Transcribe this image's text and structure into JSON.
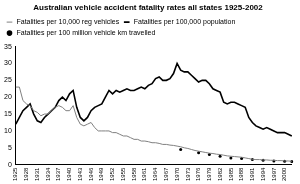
{
  "chart_data": {
    "type": "line",
    "title": "Australian vehicle accident fatality rates all states 1925-2002",
    "categories": [
      "1925",
      null,
      null,
      "1928",
      null,
      null,
      "1931",
      null,
      null,
      "1934",
      null,
      null,
      "1937",
      null,
      null,
      "1940",
      null,
      null,
      "1943",
      null,
      null,
      "1946",
      null,
      null,
      "1949",
      null,
      null,
      "1952",
      null,
      null,
      "1955",
      null,
      null,
      "1958",
      null,
      null,
      "1961",
      null,
      null,
      "1964",
      null,
      null,
      "1967",
      null,
      null,
      "1970",
      null,
      null,
      "1973",
      null,
      null,
      "1976",
      null,
      null,
      "1979",
      null,
      null,
      "1982",
      null,
      null,
      "1985",
      null,
      null,
      "1988",
      null,
      null,
      "1991",
      null,
      null,
      "1994",
      null,
      null,
      "1997",
      null,
      null,
      "2000",
      null,
      null
    ],
    "series": [
      {
        "name": "Fatalities per 10,000 reg vehicles",
        "color": "#808080",
        "marker": "none",
        "line_style": "solid",
        "values": [
          23,
          23,
          19,
          18,
          17.5,
          16,
          15.5,
          14.5,
          15,
          15,
          16,
          17,
          17.5,
          17,
          16,
          16,
          17.5,
          14,
          12,
          11.5,
          12,
          12.5,
          11,
          10,
          10,
          10,
          10,
          9.5,
          9.5,
          9,
          8.5,
          8.5,
          8,
          7.5,
          7.5,
          7,
          7,
          6.8,
          6.5,
          6.5,
          6.3,
          6,
          6,
          5.8,
          5.7,
          5.5,
          5.3,
          5,
          4.8,
          4.5,
          4.2,
          4,
          3.8,
          3.6,
          3.4,
          3.3,
          3.1,
          3,
          2.8,
          2.6,
          2.5,
          2.4,
          2.3,
          2.2,
          2,
          1.8,
          1.6,
          1.5,
          1.5,
          1.4,
          1.4,
          1.3,
          1.3,
          1.2,
          1.2,
          1.1,
          1.1,
          1.0
        ]
      },
      {
        "name": "Fatalities per 100,000 population",
        "color": "#000000",
        "marker": "none",
        "line_style": "solid",
        "values": [
          12,
          14,
          16,
          17,
          18,
          15,
          13,
          12.5,
          14,
          15,
          16,
          17,
          19,
          20,
          19,
          21,
          22,
          17,
          14,
          13,
          14,
          16,
          17,
          17.5,
          18,
          20,
          22,
          21,
          22,
          21.5,
          22,
          22.5,
          22,
          22,
          22.5,
          23,
          22.5,
          23.5,
          24,
          25.5,
          26,
          25,
          25,
          25.5,
          27,
          30,
          28,
          27.5,
          27.5,
          26.5,
          25.5,
          24.5,
          25,
          25,
          24,
          22.5,
          22,
          21.5,
          18.5,
          18,
          18.5,
          18.5,
          18,
          17.5,
          17,
          14,
          12.5,
          11.5,
          11,
          10.5,
          11,
          10.5,
          10,
          9.5,
          9.5,
          9.5,
          9,
          8.5
        ]
      },
      {
        "name": "Fatalities per 100 million vehicle km travelled",
        "color": "#000000",
        "marker": "circle",
        "line_style": "none",
        "values": [
          null,
          null,
          null,
          null,
          null,
          null,
          null,
          null,
          null,
          null,
          null,
          null,
          null,
          null,
          null,
          null,
          null,
          null,
          null,
          null,
          null,
          null,
          null,
          null,
          null,
          null,
          null,
          null,
          null,
          null,
          null,
          null,
          null,
          null,
          null,
          null,
          null,
          null,
          null,
          null,
          null,
          null,
          null,
          null,
          null,
          null,
          4.5,
          null,
          null,
          null,
          null,
          3.5,
          null,
          null,
          3.0,
          null,
          null,
          2.5,
          null,
          null,
          2.0,
          null,
          null,
          1.8,
          null,
          null,
          1.5,
          null,
          null,
          1.3,
          null,
          null,
          1.1,
          null,
          null,
          1.0,
          null,
          0.9
        ]
      }
    ],
    "ylim": [
      0,
      35
    ],
    "yticks": [
      0,
      5,
      10,
      15,
      20,
      25,
      30,
      35
    ],
    "grid": false,
    "legend": "top-left"
  }
}
